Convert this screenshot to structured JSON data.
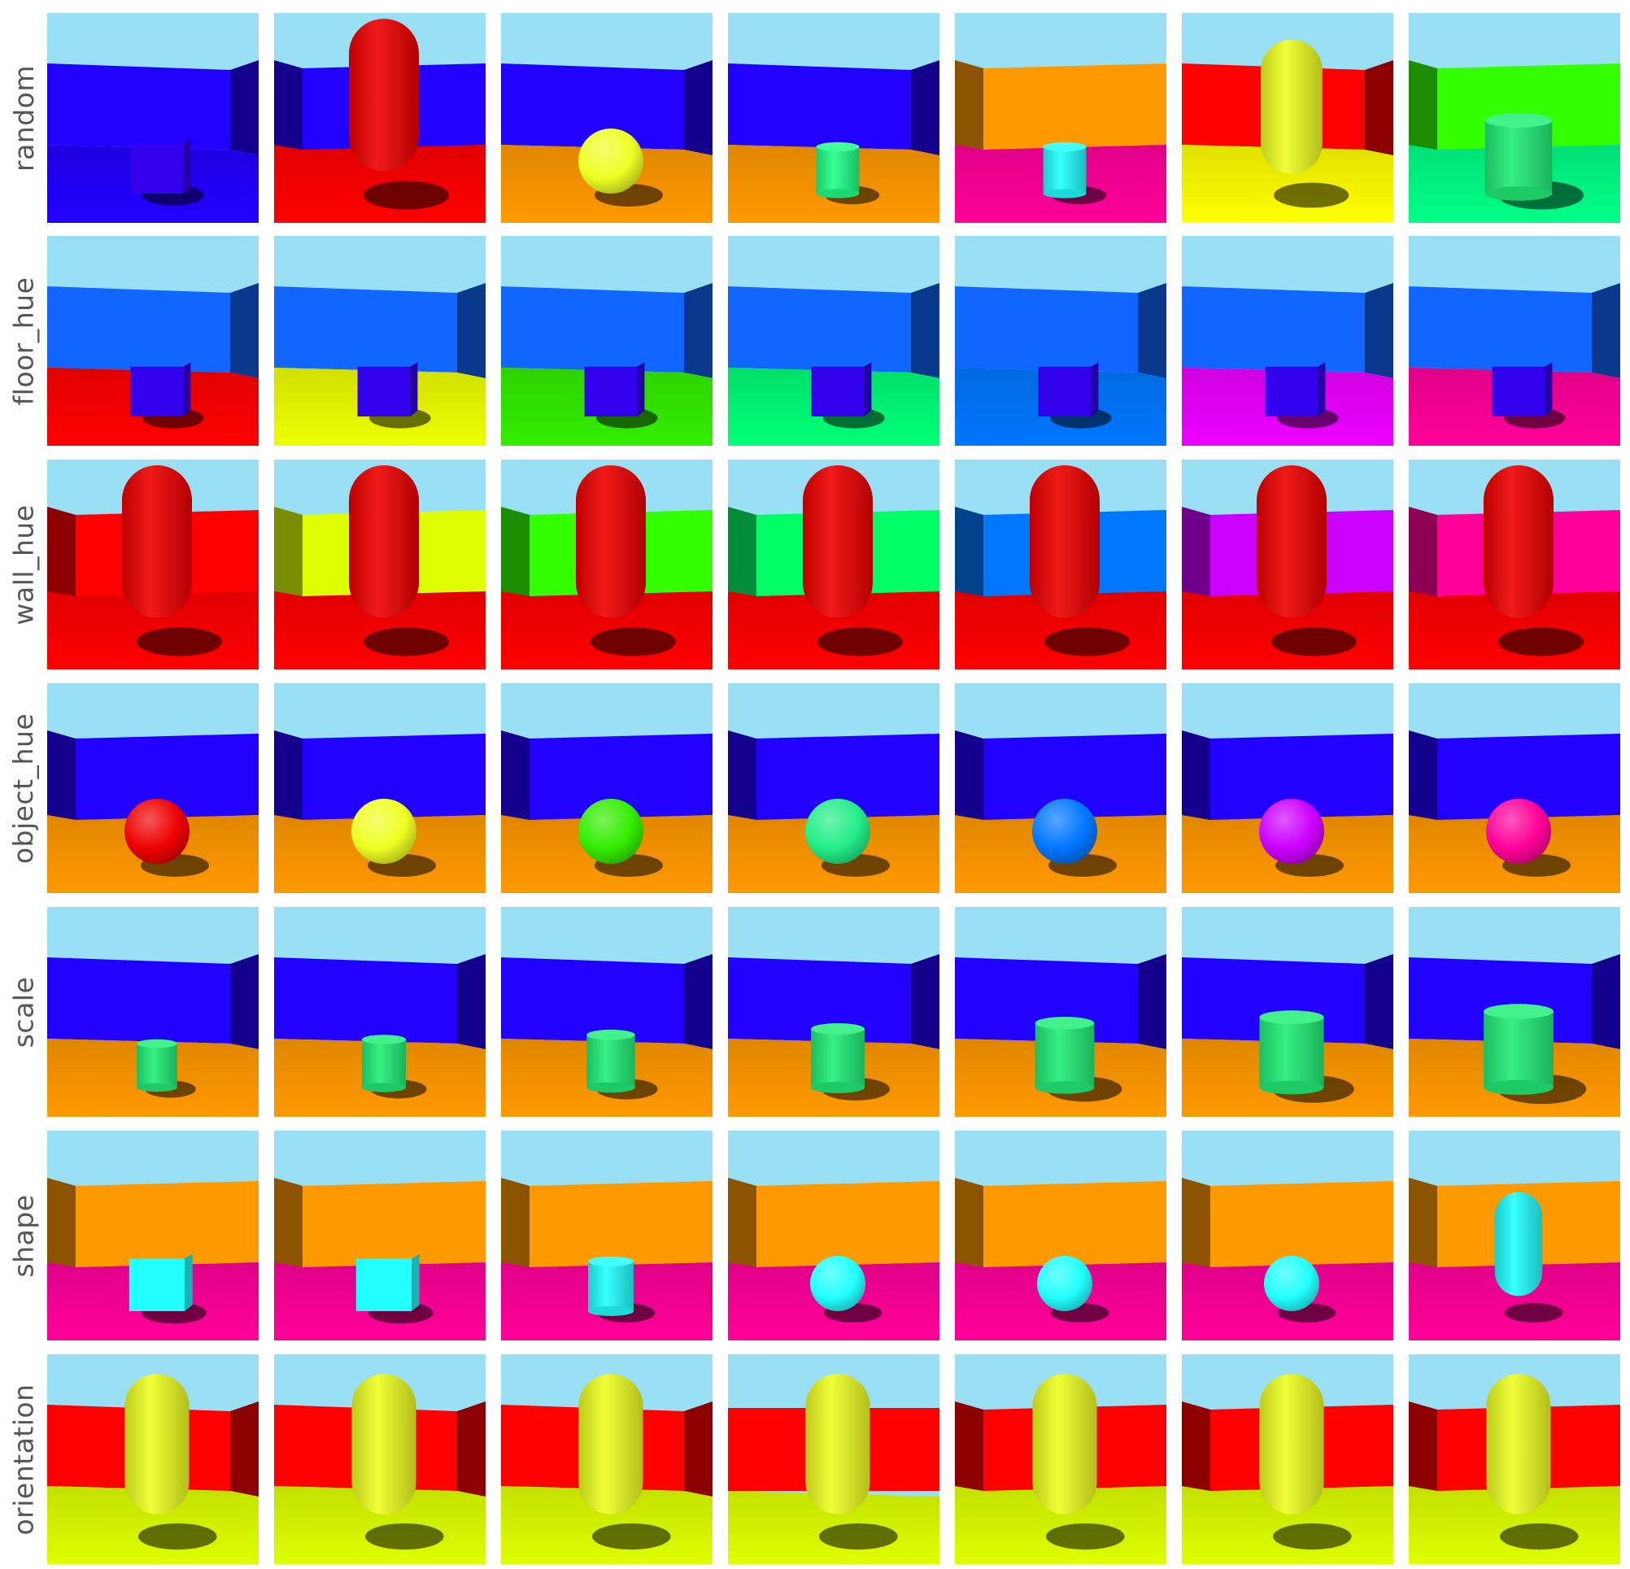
{
  "grid": {
    "rows": [
      {
        "label": "random",
        "tiles": [
          {
            "wall": "#2200ff",
            "floor": "#2200ff",
            "object": "#3300ee",
            "shape": "cube",
            "scale": 0.9,
            "orient": 1
          },
          {
            "wall": "#2200ff",
            "floor": "#ff0000",
            "object": "#ee0000",
            "shape": "capsule",
            "scale": 1.25,
            "orient": -1
          },
          {
            "wall": "#2200ff",
            "floor": "#ff9900",
            "object": "#eeff22",
            "shape": "sphere",
            "scale": 1.0,
            "orient": 1
          },
          {
            "wall": "#2200ff",
            "floor": "#ff9900",
            "object": "#22ff88",
            "shape": "cylinder",
            "scale": 0.8,
            "orient": 1
          },
          {
            "wall": "#ff9900",
            "floor": "#ff0099",
            "object": "#22ffff",
            "shape": "cylinder",
            "scale": 0.8,
            "orient": -1
          },
          {
            "wall": "#ff0000",
            "floor": "#ffff00",
            "object": "#eeff22",
            "shape": "capsule",
            "scale": 1.1,
            "orient": 1
          },
          {
            "wall": "#33ff00",
            "floor": "#00ff88",
            "object": "#22ee77",
            "shape": "cylinder",
            "scale": 1.25,
            "orient": -1
          }
        ]
      },
      {
        "label": "floor_hue",
        "tiles": [
          {
            "wall": "#1166ff",
            "floor": "#ff0000",
            "object": "#3300ee",
            "shape": "cube",
            "scale": 0.9,
            "orient": 1
          },
          {
            "wall": "#1166ff",
            "floor": "#eeff00",
            "object": "#3300ee",
            "shape": "cube",
            "scale": 0.9,
            "orient": 1
          },
          {
            "wall": "#1166ff",
            "floor": "#33ee00",
            "object": "#3300ee",
            "shape": "cube",
            "scale": 0.9,
            "orient": 1
          },
          {
            "wall": "#1166ff",
            "floor": "#00ff77",
            "object": "#3300ee",
            "shape": "cube",
            "scale": 0.9,
            "orient": 1
          },
          {
            "wall": "#1166ff",
            "floor": "#0077ff",
            "object": "#3300ee",
            "shape": "cube",
            "scale": 0.9,
            "orient": 1
          },
          {
            "wall": "#1166ff",
            "floor": "#ee00ff",
            "object": "#3300ee",
            "shape": "cube",
            "scale": 0.9,
            "orient": 1
          },
          {
            "wall": "#1166ff",
            "floor": "#ff0099",
            "object": "#3300ee",
            "shape": "cube",
            "scale": 0.9,
            "orient": 1
          }
        ]
      },
      {
        "label": "wall_hue",
        "tiles": [
          {
            "wall": "#ff0000",
            "floor": "#ff0000",
            "object": "#ee0000",
            "shape": "capsule",
            "scale": 1.25,
            "orient": -1
          },
          {
            "wall": "#ddff00",
            "floor": "#ff0000",
            "object": "#ee0000",
            "shape": "capsule",
            "scale": 1.25,
            "orient": -1
          },
          {
            "wall": "#33ff00",
            "floor": "#ff0000",
            "object": "#ee0000",
            "shape": "capsule",
            "scale": 1.25,
            "orient": -1
          },
          {
            "wall": "#00ff66",
            "floor": "#ff0000",
            "object": "#ee0000",
            "shape": "capsule",
            "scale": 1.25,
            "orient": -1
          },
          {
            "wall": "#0077ff",
            "floor": "#ff0000",
            "object": "#ee0000",
            "shape": "capsule",
            "scale": 1.25,
            "orient": -1
          },
          {
            "wall": "#cc00ff",
            "floor": "#ff0000",
            "object": "#ee0000",
            "shape": "capsule",
            "scale": 1.25,
            "orient": -1
          },
          {
            "wall": "#ff0099",
            "floor": "#ff0000",
            "object": "#ee0000",
            "shape": "capsule",
            "scale": 1.25,
            "orient": -1
          }
        ]
      },
      {
        "label": "object_hue",
        "tiles": [
          {
            "wall": "#2200ff",
            "floor": "#ff9900",
            "object": "#ee0000",
            "shape": "sphere",
            "scale": 1.0,
            "orient": -1
          },
          {
            "wall": "#2200ff",
            "floor": "#ff9900",
            "object": "#eeff22",
            "shape": "sphere",
            "scale": 1.0,
            "orient": -1
          },
          {
            "wall": "#2200ff",
            "floor": "#ff9900",
            "object": "#33ee00",
            "shape": "sphere",
            "scale": 1.0,
            "orient": -1
          },
          {
            "wall": "#2200ff",
            "floor": "#ff9900",
            "object": "#22ee88",
            "shape": "sphere",
            "scale": 1.0,
            "orient": -1
          },
          {
            "wall": "#2200ff",
            "floor": "#ff9900",
            "object": "#0077ff",
            "shape": "sphere",
            "scale": 1.0,
            "orient": -1
          },
          {
            "wall": "#2200ff",
            "floor": "#ff9900",
            "object": "#cc00ff",
            "shape": "sphere",
            "scale": 1.0,
            "orient": -1
          },
          {
            "wall": "#2200ff",
            "floor": "#ff9900",
            "object": "#ff0099",
            "shape": "sphere",
            "scale": 1.0,
            "orient": -1
          }
        ]
      },
      {
        "label": "scale",
        "tiles": [
          {
            "wall": "#2200ff",
            "floor": "#ff9900",
            "object": "#22ee77",
            "shape": "cylinder",
            "scale": 0.75,
            "orient": 1
          },
          {
            "wall": "#2200ff",
            "floor": "#ff9900",
            "object": "#22ee77",
            "shape": "cylinder",
            "scale": 0.82,
            "orient": 1
          },
          {
            "wall": "#2200ff",
            "floor": "#ff9900",
            "object": "#22ee77",
            "shape": "cylinder",
            "scale": 0.9,
            "orient": 1
          },
          {
            "wall": "#2200ff",
            "floor": "#ff9900",
            "object": "#22ee77",
            "shape": "cylinder",
            "scale": 1.0,
            "orient": 1
          },
          {
            "wall": "#2200ff",
            "floor": "#ff9900",
            "object": "#22ee77",
            "shape": "cylinder",
            "scale": 1.1,
            "orient": 1
          },
          {
            "wall": "#2200ff",
            "floor": "#ff9900",
            "object": "#22ee77",
            "shape": "cylinder",
            "scale": 1.2,
            "orient": 1
          },
          {
            "wall": "#2200ff",
            "floor": "#ff9900",
            "object": "#22ee77",
            "shape": "cylinder",
            "scale": 1.3,
            "orient": 1
          }
        ]
      },
      {
        "label": "shape",
        "tiles": [
          {
            "wall": "#ff9900",
            "floor": "#ff0099",
            "object": "#22ffff",
            "shape": "cube",
            "scale": 0.95,
            "orient": -1
          },
          {
            "wall": "#ff9900",
            "floor": "#ff0099",
            "object": "#22ffff",
            "shape": "cube",
            "scale": 0.95,
            "orient": -1
          },
          {
            "wall": "#ff9900",
            "floor": "#ff0099",
            "object": "#22ffff",
            "shape": "cylinder",
            "scale": 0.85,
            "orient": -1
          },
          {
            "wall": "#ff9900",
            "floor": "#ff0099",
            "object": "#22ffff",
            "shape": "sphere",
            "scale": 0.85,
            "orient": -1
          },
          {
            "wall": "#ff9900",
            "floor": "#ff0099",
            "object": "#22ffff",
            "shape": "sphere",
            "scale": 0.85,
            "orient": -1
          },
          {
            "wall": "#ff9900",
            "floor": "#ff0099",
            "object": "#22ffff",
            "shape": "sphere",
            "scale": 0.85,
            "orient": -1
          },
          {
            "wall": "#ff9900",
            "floor": "#ff0099",
            "object": "#22ffff",
            "shape": "capsule",
            "scale": 0.85,
            "orient": -1
          }
        ]
      },
      {
        "label": "orientation",
        "tiles": [
          {
            "wall": "#ff0000",
            "floor": "#ddff00",
            "object": "#eeff22",
            "shape": "capsule",
            "scale": 1.15,
            "orient": 1
          },
          {
            "wall": "#ff0000",
            "floor": "#ddff00",
            "object": "#eeff22",
            "shape": "capsule",
            "scale": 1.15,
            "orient": 1
          },
          {
            "wall": "#ff0000",
            "floor": "#ddff00",
            "object": "#eeff22",
            "shape": "capsule",
            "scale": 1.15,
            "orient": 1
          },
          {
            "wall": "#ff0000",
            "floor": "#ddff00",
            "object": "#eeff22",
            "shape": "capsule",
            "scale": 1.15,
            "orient": 0
          },
          {
            "wall": "#ff0000",
            "floor": "#ddff00",
            "object": "#eeff22",
            "shape": "capsule",
            "scale": 1.15,
            "orient": -1
          },
          {
            "wall": "#ff0000",
            "floor": "#ddff00",
            "object": "#eeff22",
            "shape": "capsule",
            "scale": 1.15,
            "orient": -1
          },
          {
            "wall": "#ff0000",
            "floor": "#ddff00",
            "object": "#eeff22",
            "shape": "capsule",
            "scale": 1.15,
            "orient": -1
          }
        ]
      }
    ],
    "sky_color": "#99e0f5"
  }
}
